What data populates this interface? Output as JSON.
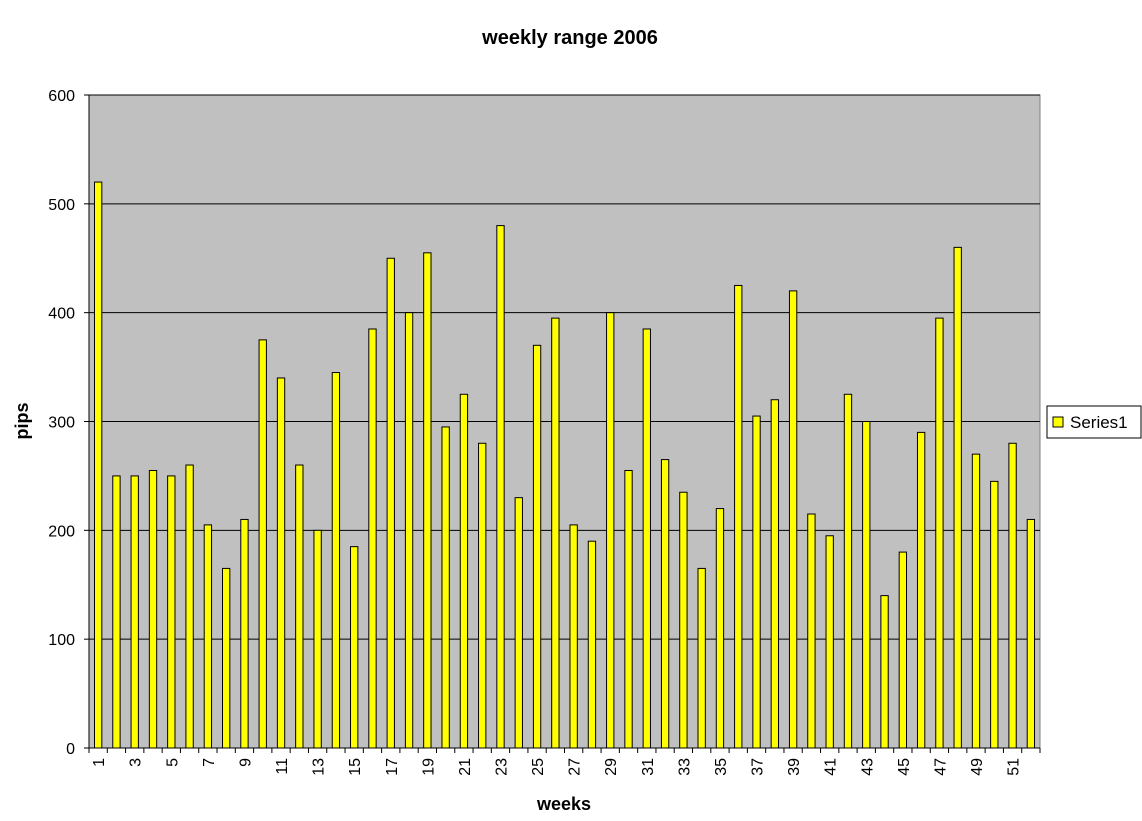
{
  "chart_data": {
    "type": "bar",
    "title": "weekly range 2006",
    "xlabel": "weeks",
    "ylabel": "pips",
    "ylim": [
      0,
      600
    ],
    "yticks": [
      0,
      100,
      200,
      300,
      400,
      500,
      600
    ],
    "xtick_labels": [
      "1",
      "3",
      "5",
      "7",
      "9",
      "11",
      "13",
      "15",
      "17",
      "19",
      "21",
      "23",
      "25",
      "27",
      "29",
      "31",
      "33",
      "35",
      "37",
      "39",
      "41",
      "43",
      "45",
      "47",
      "49",
      "51"
    ],
    "categories": [
      1,
      2,
      3,
      4,
      5,
      6,
      7,
      8,
      9,
      10,
      11,
      12,
      13,
      14,
      15,
      16,
      17,
      18,
      19,
      20,
      21,
      22,
      23,
      24,
      25,
      26,
      27,
      28,
      29,
      30,
      31,
      32,
      33,
      34,
      35,
      36,
      37,
      38,
      39,
      40,
      41,
      42,
      43,
      44,
      45,
      46,
      47,
      48,
      49,
      50,
      51,
      52
    ],
    "series": [
      {
        "name": "Series1",
        "color": "#ffff00",
        "values": [
          520,
          250,
          250,
          255,
          250,
          260,
          205,
          165,
          210,
          375,
          340,
          260,
          200,
          345,
          185,
          385,
          450,
          400,
          455,
          295,
          325,
          280,
          480,
          230,
          370,
          395,
          205,
          190,
          400,
          255,
          385,
          265,
          235,
          165,
          220,
          425,
          305,
          320,
          420,
          215,
          195,
          325,
          300,
          140,
          180,
          290,
          395,
          460,
          270,
          245,
          280,
          210
        ]
      }
    ],
    "grid": true,
    "plot_background": "#c0c0c0",
    "legend": "right"
  }
}
